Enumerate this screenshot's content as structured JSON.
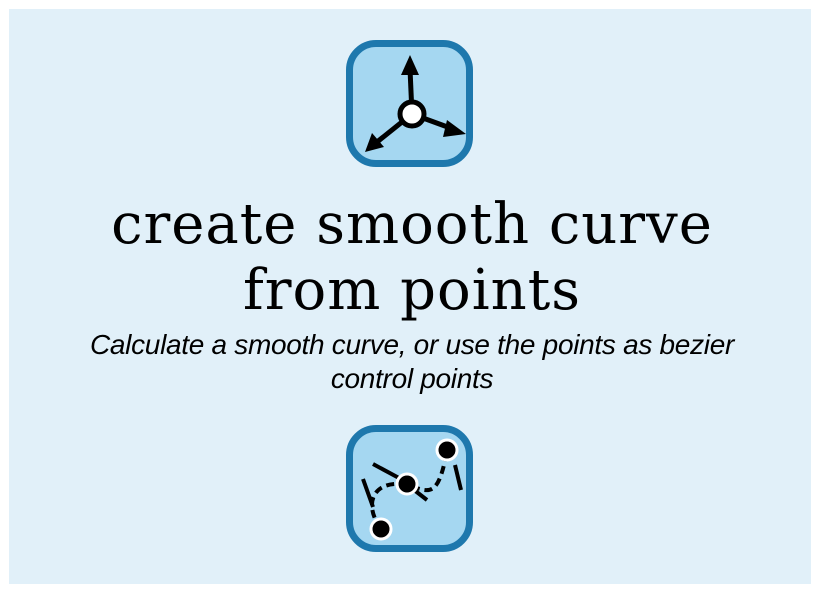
{
  "header": {
    "title_line1": "create smooth curve",
    "title_line2": "from points",
    "subtitle_line1": "Calculate a smooth curve, or use the points as bezier",
    "subtitle_line2": "control points"
  },
  "icons": {
    "top": "axis-arrows-icon",
    "bottom": "bezier-curve-icon"
  },
  "colors": {
    "background": "#e1f0f9",
    "icon_border": "#1e78ad",
    "icon_fill": "#a5d7f1"
  }
}
